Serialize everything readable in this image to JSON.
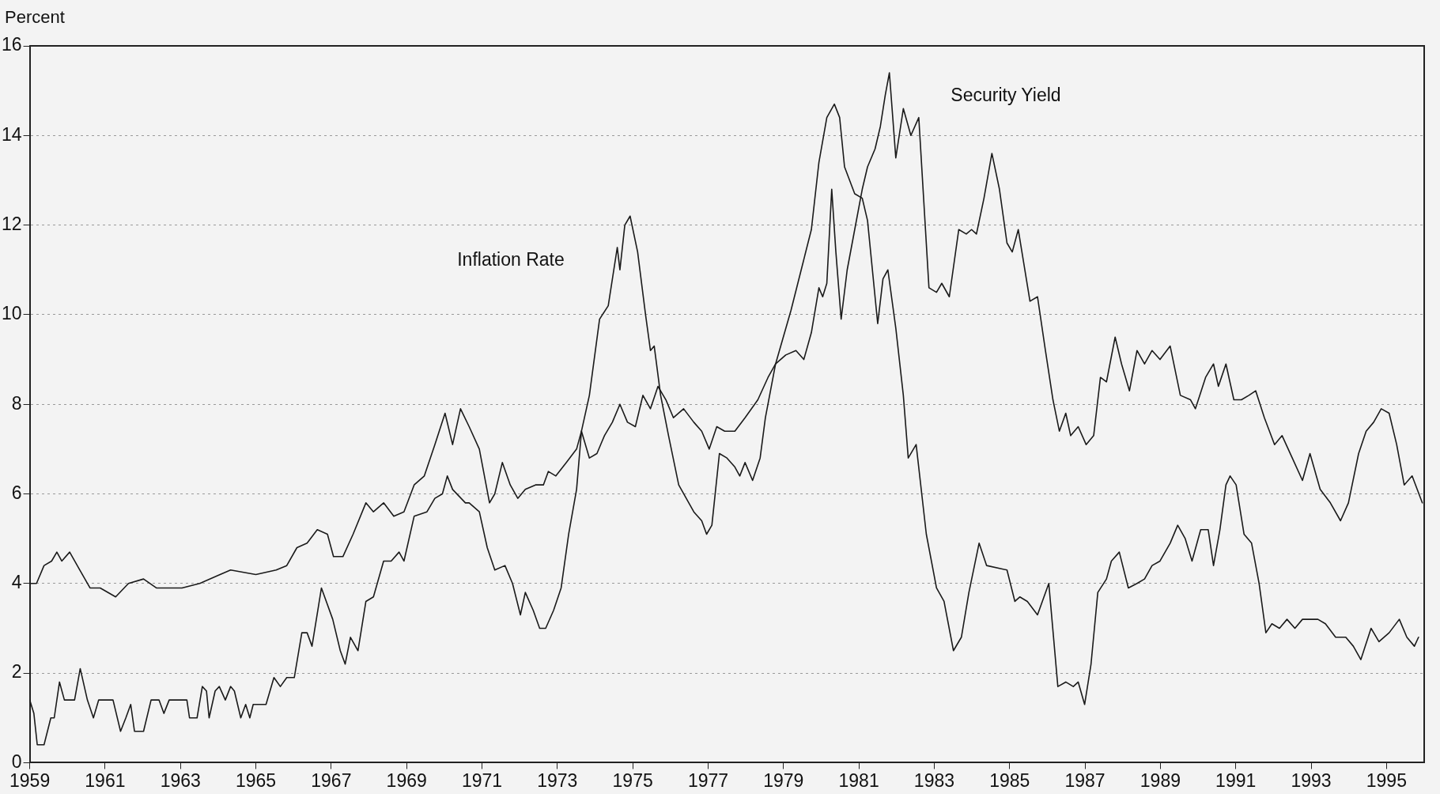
{
  "chart_data": {
    "type": "line",
    "ylabel": "Percent",
    "xlim": [
      1959,
      1996
    ],
    "ylim": [
      0,
      16
    ],
    "xticks": [
      1959,
      1961,
      1963,
      1965,
      1967,
      1969,
      1971,
      1973,
      1975,
      1977,
      1979,
      1981,
      1983,
      1985,
      1987,
      1989,
      1991,
      1993,
      1995
    ],
    "yticks": [
      0,
      2,
      4,
      6,
      8,
      10,
      12,
      14,
      16
    ],
    "grid": "y",
    "legend": false,
    "marker": "none",
    "line_style": "solid",
    "series": [
      {
        "name": "Inflation Rate",
        "color": "#1a1a1a",
        "x": [
          1959.0,
          1959.11,
          1959.2,
          1959.38,
          1959.56,
          1959.65,
          1959.79,
          1959.92,
          1960.19,
          1960.34,
          1960.53,
          1960.69,
          1960.83,
          1961.21,
          1961.41,
          1961.55,
          1961.68,
          1961.78,
          1962.02,
          1962.22,
          1962.43,
          1962.56,
          1962.7,
          1963.17,
          1963.24,
          1963.44,
          1963.58,
          1963.69,
          1963.76,
          1963.92,
          1964.03,
          1964.19,
          1964.33,
          1964.43,
          1964.6,
          1964.73,
          1964.84,
          1964.93,
          1965.27,
          1965.48,
          1965.65,
          1965.82,
          1966.02,
          1966.22,
          1966.36,
          1966.49,
          1966.74,
          1967.04,
          1967.24,
          1967.37,
          1967.51,
          1967.71,
          1967.92,
          1968.12,
          1968.39,
          1968.59,
          1968.8,
          1968.93,
          1969.2,
          1969.54,
          1969.75,
          1969.95,
          1970.08,
          1970.22,
          1970.56,
          1970.66,
          1970.93,
          1971.14,
          1971.34,
          1971.61,
          1971.81,
          1972.02,
          1972.15,
          1972.36,
          1972.53,
          1972.69,
          1972.9,
          1973.1,
          1973.3,
          1973.51,
          1973.64,
          1973.85,
          1974.12,
          1974.35,
          1974.59,
          1974.66,
          1974.79,
          1974.93,
          1975.13,
          1975.34,
          1975.47,
          1975.57,
          1975.74,
          1975.95,
          1976.22,
          1976.42,
          1976.62,
          1976.83,
          1976.96,
          1977.1,
          1977.3,
          1977.5,
          1977.71,
          1977.84,
          1977.98,
          1978.18,
          1978.38,
          1978.52,
          1978.79,
          1979.2,
          1979.47,
          1979.74,
          1979.94,
          1980.15,
          1980.35,
          1980.49,
          1980.62,
          1980.89,
          1981.09,
          1981.23,
          1981.5,
          1981.64,
          1981.77,
          1981.98,
          1982.18,
          1982.31,
          1982.52,
          1982.79,
          1983.06,
          1983.26,
          1983.51,
          1983.72,
          1983.92,
          1984.19,
          1984.39,
          1984.93,
          1985.14,
          1985.27,
          1985.47,
          1985.74,
          1986.04,
          1986.28,
          1986.49,
          1986.69,
          1986.82,
          1986.99,
          1987.16,
          1987.34,
          1987.57,
          1987.7,
          1987.91,
          1988.15,
          1988.38,
          1988.58,
          1988.78,
          1988.99,
          1989.26,
          1989.46,
          1989.66,
          1989.84,
          1990.07,
          1990.27,
          1990.41,
          1990.58,
          1990.74,
          1990.85,
          1991.01,
          1991.22,
          1991.42,
          1991.62,
          1991.8,
          1991.96,
          1992.16,
          1992.36,
          1992.57,
          1992.77,
          1992.97,
          1993.18,
          1993.38,
          1993.65,
          1993.92,
          1994.12,
          1994.32,
          1994.59,
          1994.8,
          1995.07,
          1995.34,
          1995.54,
          1995.74,
          1995.85
        ],
        "values": [
          1.4,
          1.1,
          0.4,
          0.4,
          1.0,
          1.0,
          1.8,
          1.4,
          1.4,
          2.1,
          1.4,
          1.0,
          1.4,
          1.4,
          0.7,
          1.0,
          1.3,
          0.7,
          0.7,
          1.4,
          1.4,
          1.1,
          1.4,
          1.4,
          1.0,
          1.0,
          1.7,
          1.6,
          1.0,
          1.6,
          1.7,
          1.4,
          1.7,
          1.6,
          1.0,
          1.3,
          1.0,
          1.3,
          1.3,
          1.9,
          1.7,
          1.9,
          1.9,
          2.9,
          2.9,
          2.6,
          3.9,
          3.2,
          2.5,
          2.2,
          2.8,
          2.5,
          3.6,
          3.7,
          4.5,
          4.5,
          4.7,
          4.5,
          5.5,
          5.6,
          5.9,
          6.0,
          6.4,
          6.1,
          5.8,
          5.8,
          5.6,
          4.8,
          4.3,
          4.4,
          4.0,
          3.3,
          3.8,
          3.4,
          3.0,
          3.0,
          3.4,
          3.9,
          5.1,
          6.1,
          7.4,
          8.2,
          9.9,
          10.2,
          11.5,
          11.0,
          12.0,
          12.2,
          11.4,
          10.0,
          9.2,
          9.3,
          8.2,
          7.3,
          6.2,
          5.9,
          5.6,
          5.4,
          5.1,
          5.3,
          6.9,
          6.8,
          6.6,
          6.4,
          6.7,
          6.3,
          6.8,
          7.7,
          8.9,
          10.1,
          11.0,
          11.9,
          13.4,
          14.4,
          14.7,
          14.4,
          13.3,
          12.7,
          12.6,
          12.1,
          9.8,
          10.8,
          11.0,
          9.7,
          8.2,
          6.8,
          7.1,
          5.1,
          3.9,
          3.6,
          2.5,
          2.8,
          3.8,
          4.9,
          4.4,
          4.3,
          3.6,
          3.7,
          3.6,
          3.3,
          4.0,
          1.7,
          1.8,
          1.7,
          1.8,
          1.3,
          2.2,
          3.8,
          4.1,
          4.5,
          4.7,
          3.9,
          4.0,
          4.1,
          4.4,
          4.5,
          4.9,
          5.3,
          5.0,
          4.5,
          5.2,
          5.2,
          4.4,
          5.2,
          6.2,
          6.4,
          6.2,
          5.1,
          4.9,
          4.0,
          2.9,
          3.1,
          3.0,
          3.2,
          3.0,
          3.2,
          3.2,
          3.2,
          3.1,
          2.8,
          2.8,
          2.6,
          2.3,
          3.0,
          2.7,
          2.9,
          3.2,
          2.8,
          2.6,
          2.8
        ]
      },
      {
        "name": "Security Yield",
        "color": "#1a1a1a",
        "x": [
          1959.0,
          1959.18,
          1959.38,
          1959.58,
          1959.72,
          1959.85,
          1960.06,
          1960.33,
          1960.6,
          1960.87,
          1961.28,
          1961.62,
          1962.02,
          1962.36,
          1963.04,
          1963.51,
          1964.05,
          1964.33,
          1965.0,
          1965.54,
          1965.82,
          1966.09,
          1966.36,
          1966.63,
          1966.9,
          1967.06,
          1967.31,
          1967.58,
          1967.92,
          1968.12,
          1968.39,
          1968.66,
          1968.93,
          1969.2,
          1969.47,
          1969.75,
          1970.02,
          1970.22,
          1970.43,
          1970.66,
          1970.93,
          1971.2,
          1971.34,
          1971.54,
          1971.75,
          1971.95,
          1972.15,
          1972.42,
          1972.63,
          1972.76,
          1972.96,
          1973.24,
          1973.51,
          1973.64,
          1973.85,
          1974.05,
          1974.25,
          1974.46,
          1974.66,
          1974.86,
          1975.07,
          1975.27,
          1975.47,
          1975.67,
          1975.88,
          1976.08,
          1976.35,
          1976.62,
          1976.83,
          1977.03,
          1977.23,
          1977.44,
          1977.71,
          1977.98,
          1978.32,
          1978.59,
          1978.79,
          1979.06,
          1979.33,
          1979.54,
          1979.74,
          1979.94,
          1980.04,
          1980.15,
          1980.28,
          1980.39,
          1980.53,
          1980.69,
          1980.89,
          1981.09,
          1981.23,
          1981.43,
          1981.57,
          1981.7,
          1981.81,
          1981.98,
          1982.18,
          1982.38,
          1982.59,
          1982.86,
          1983.06,
          1983.2,
          1983.4,
          1983.65,
          1983.85,
          1983.99,
          1984.12,
          1984.32,
          1984.53,
          1984.73,
          1984.93,
          1985.07,
          1985.23,
          1985.54,
          1985.74,
          1985.95,
          1986.15,
          1986.32,
          1986.49,
          1986.62,
          1986.82,
          1987.03,
          1987.23,
          1987.41,
          1987.57,
          1987.8,
          1987.97,
          1988.18,
          1988.38,
          1988.58,
          1988.78,
          1988.99,
          1989.26,
          1989.53,
          1989.8,
          1989.93,
          1990.2,
          1990.41,
          1990.54,
          1990.74,
          1990.95,
          1991.15,
          1991.35,
          1991.53,
          1991.76,
          1992.03,
          1992.23,
          1992.5,
          1992.77,
          1992.97,
          1993.24,
          1993.51,
          1993.78,
          1993.99,
          1994.26,
          1994.46,
          1994.66,
          1994.86,
          1995.07,
          1995.27,
          1995.47,
          1995.68,
          1995.95
        ],
        "values": [
          4.0,
          4.0,
          4.4,
          4.5,
          4.7,
          4.5,
          4.7,
          4.3,
          3.9,
          3.9,
          3.7,
          4.0,
          4.1,
          3.9,
          3.9,
          4.0,
          4.2,
          4.3,
          4.2,
          4.3,
          4.4,
          4.8,
          4.9,
          5.2,
          5.1,
          4.6,
          4.6,
          5.1,
          5.8,
          5.6,
          5.8,
          5.5,
          5.6,
          6.2,
          6.4,
          7.1,
          7.8,
          7.1,
          7.9,
          7.5,
          7.0,
          5.8,
          6.0,
          6.7,
          6.2,
          5.9,
          6.1,
          6.2,
          6.2,
          6.5,
          6.4,
          6.7,
          7.0,
          7.4,
          6.8,
          6.9,
          7.3,
          7.6,
          8.0,
          7.6,
          7.5,
          8.2,
          7.9,
          8.4,
          8.1,
          7.7,
          7.9,
          7.6,
          7.4,
          7.0,
          7.5,
          7.4,
          7.4,
          7.7,
          8.1,
          8.6,
          8.9,
          9.1,
          9.2,
          9.0,
          9.6,
          10.6,
          10.4,
          10.7,
          12.8,
          11.4,
          9.9,
          11.0,
          11.9,
          12.8,
          13.3,
          13.7,
          14.2,
          14.9,
          15.4,
          13.5,
          14.6,
          14.0,
          14.4,
          10.6,
          10.5,
          10.7,
          10.4,
          11.9,
          11.8,
          11.9,
          11.8,
          12.6,
          13.6,
          12.8,
          11.6,
          11.4,
          11.9,
          10.3,
          10.4,
          9.2,
          8.1,
          7.4,
          7.8,
          7.3,
          7.5,
          7.1,
          7.3,
          8.6,
          8.5,
          9.5,
          8.9,
          8.3,
          9.2,
          8.9,
          9.2,
          9.0,
          9.3,
          8.2,
          8.1,
          7.9,
          8.6,
          8.9,
          8.4,
          8.9,
          8.1,
          8.1,
          8.2,
          8.3,
          7.7,
          7.1,
          7.3,
          6.8,
          6.3,
          6.9,
          6.1,
          5.8,
          5.4,
          5.8,
          6.9,
          7.4,
          7.6,
          7.9,
          7.8,
          7.1,
          6.2,
          6.4,
          5.8
        ]
      }
    ]
  }
}
